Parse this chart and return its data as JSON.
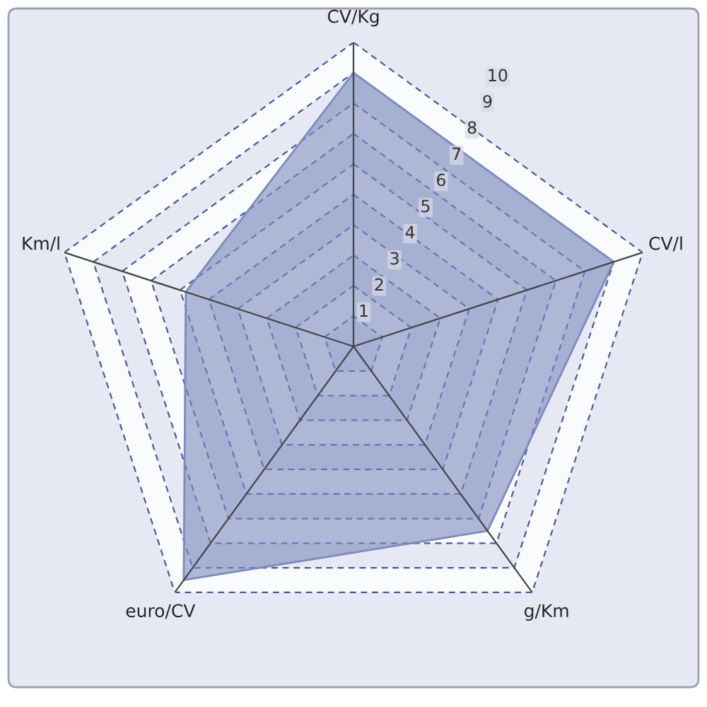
{
  "chart_data": {
    "type": "radar",
    "categories": [
      "CV/Kg",
      "CV/l",
      "g/Km",
      "euro/CV",
      "Km/l"
    ],
    "series": [
      {
        "color": "#7b8bbd",
        "values": [
          9.0,
          9.0,
          7.5,
          9.5,
          5.8
        ]
      }
    ],
    "ylim": [
      0,
      10
    ],
    "yticks": [
      1,
      2,
      3,
      4,
      5,
      6,
      7,
      8,
      9,
      10
    ],
    "grid": true,
    "legend": false
  }
}
